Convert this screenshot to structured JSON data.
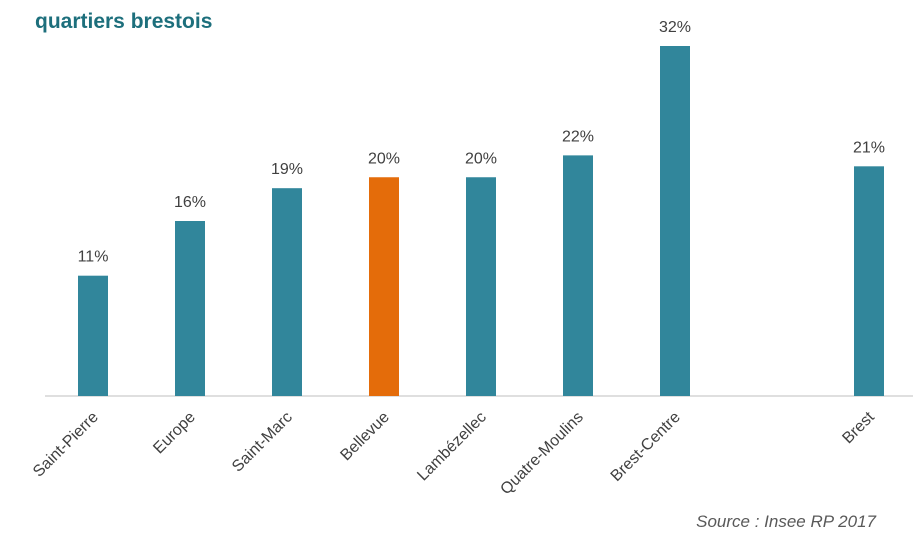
{
  "chart_data": {
    "type": "bar",
    "title": "quartiers brestois",
    "categories": [
      "Saint-Pierre",
      "Europe",
      "Saint-Marc",
      "Bellevue",
      "Lambézellec",
      "Quatre-Moulins",
      "Brest-Centre",
      null,
      "Brest"
    ],
    "values": [
      11,
      16,
      19,
      20,
      20,
      22,
      32,
      null,
      21
    ],
    "value_labels": [
      "11%",
      "16%",
      "19%",
      "20%",
      "20%",
      "22%",
      "32%",
      null,
      "21%"
    ],
    "colors": [
      "#31869b",
      "#31869b",
      "#31869b",
      "#e46c0a",
      "#31869b",
      "#31869b",
      "#31869b",
      null,
      "#31869b"
    ],
    "ylim": [
      0,
      32
    ],
    "source": "Source : Insee RP 2017"
  }
}
